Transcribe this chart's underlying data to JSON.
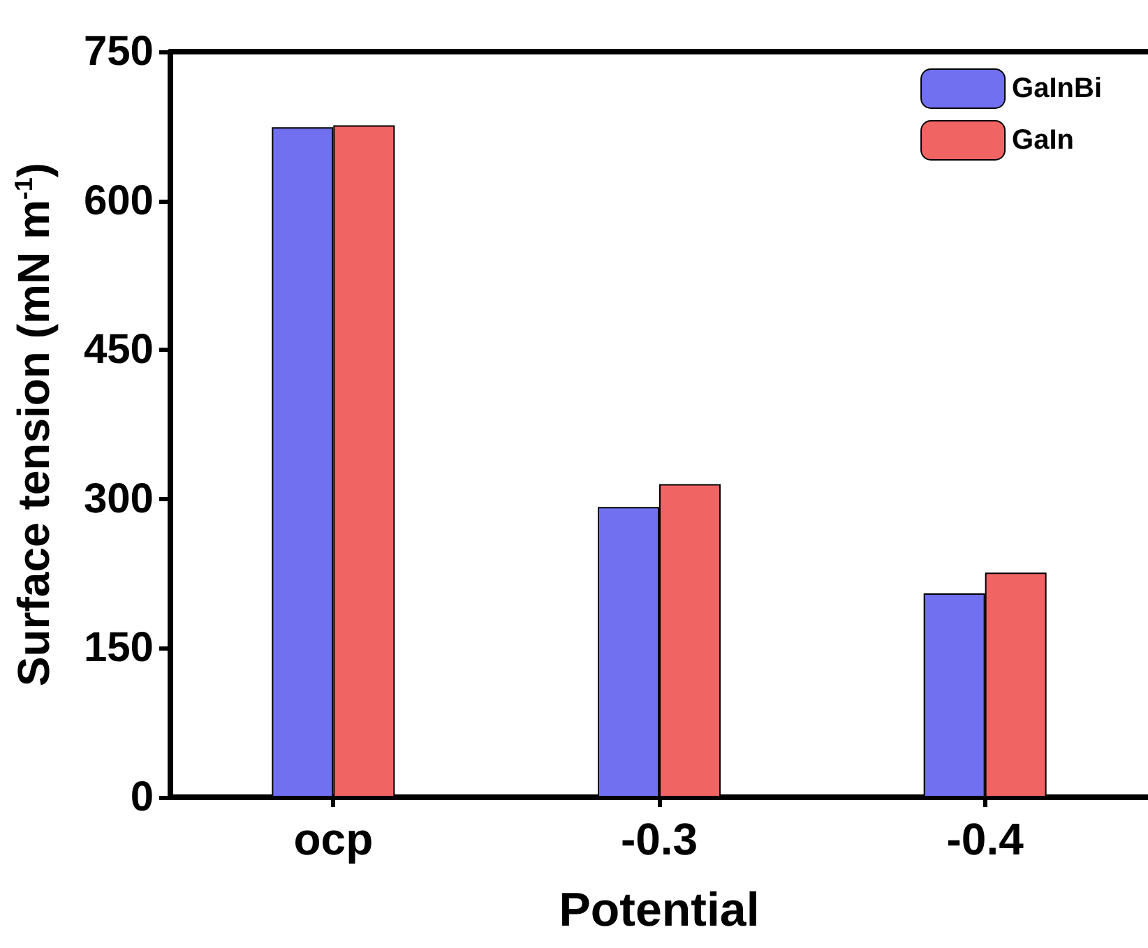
{
  "chart_data": {
    "type": "bar",
    "xlabel": "Potential",
    "ylabel": "Surface tension (mN m$^{-1}$)",
    "categories": [
      "ocp",
      "-0.3",
      "-0.4"
    ],
    "series": [
      {
        "name": "GaInBi",
        "color": "#7070f0",
        "values": [
          674,
          292,
          205
        ]
      },
      {
        "name": "GaIn",
        "color": "#f06464",
        "values": [
          676,
          315,
          226
        ]
      }
    ],
    "ylim": [
      0,
      750
    ],
    "yticks": [
      0,
      150,
      300,
      450,
      600,
      750
    ],
    "grid": false,
    "legend": "top right"
  }
}
